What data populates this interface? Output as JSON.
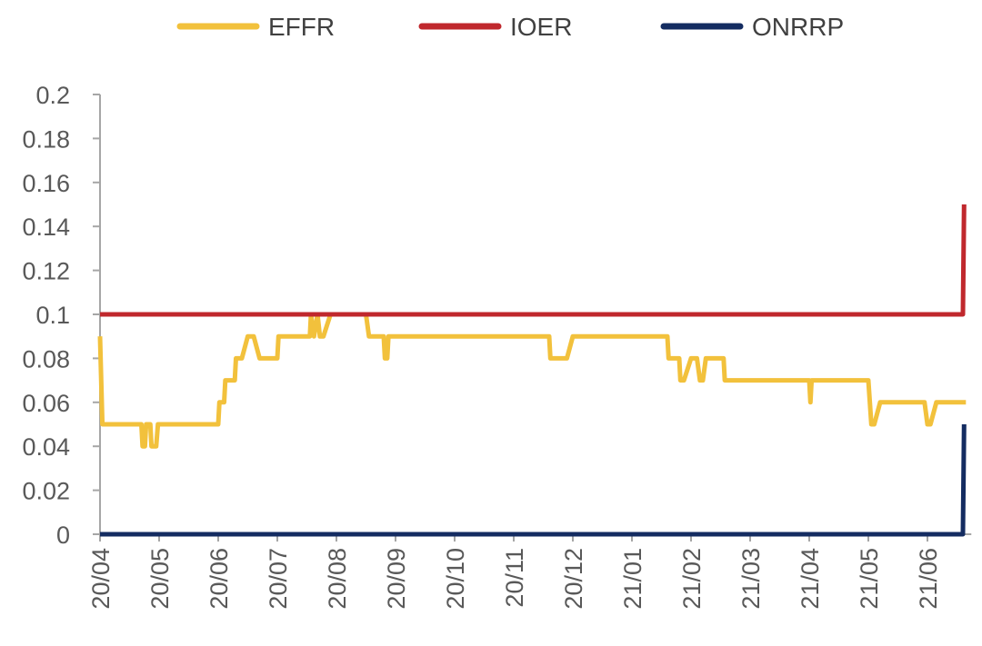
{
  "chart_data": {
    "type": "line",
    "title": "",
    "xlabel": "",
    "ylabel": "",
    "ylim": [
      0,
      0.2
    ],
    "yticks": [
      "0",
      "0.02",
      "0.04",
      "0.06",
      "0.08",
      "0.1",
      "0.12",
      "0.14",
      "0.16",
      "0.18",
      "0.2"
    ],
    "xticks": [
      "20/04",
      "20/05",
      "20/06",
      "20/07",
      "20/08",
      "20/09",
      "20/10",
      "20/11",
      "20/12",
      "21/01",
      "21/02",
      "21/03",
      "21/04",
      "21/05",
      "21/06"
    ],
    "x_unit": "month index from 20/04",
    "x_range": [
      0,
      14.65
    ],
    "grid": false,
    "legend_position": "top",
    "series": [
      {
        "name": "EFFR",
        "color": "#F2C13C",
        "points": [
          [
            0,
            0.09
          ],
          [
            0.04,
            0.05
          ],
          [
            0.7,
            0.05
          ],
          [
            0.72,
            0.04
          ],
          [
            0.76,
            0.04
          ],
          [
            0.78,
            0.05
          ],
          [
            0.85,
            0.05
          ],
          [
            0.87,
            0.04
          ],
          [
            0.95,
            0.04
          ],
          [
            0.98,
            0.05
          ],
          [
            2.0,
            0.05
          ],
          [
            2.02,
            0.06
          ],
          [
            2.1,
            0.06
          ],
          [
            2.12,
            0.07
          ],
          [
            2.28,
            0.07
          ],
          [
            2.3,
            0.08
          ],
          [
            2.4,
            0.08
          ],
          [
            2.5,
            0.09
          ],
          [
            2.6,
            0.09
          ],
          [
            2.7,
            0.08
          ],
          [
            3.0,
            0.08
          ],
          [
            3.02,
            0.09
          ],
          [
            3.55,
            0.09
          ],
          [
            3.57,
            0.1
          ],
          [
            3.62,
            0.09
          ],
          [
            3.68,
            0.1
          ],
          [
            3.72,
            0.09
          ],
          [
            3.78,
            0.09
          ],
          [
            3.9,
            0.1
          ],
          [
            4.5,
            0.1
          ],
          [
            4.55,
            0.09
          ],
          [
            4.8,
            0.09
          ],
          [
            4.82,
            0.08
          ],
          [
            4.86,
            0.08
          ],
          [
            4.88,
            0.09
          ],
          [
            7.6,
            0.09
          ],
          [
            7.62,
            0.08
          ],
          [
            7.9,
            0.08
          ],
          [
            8.0,
            0.09
          ],
          [
            9.6,
            0.09
          ],
          [
            9.62,
            0.08
          ],
          [
            9.8,
            0.08
          ],
          [
            9.82,
            0.07
          ],
          [
            9.88,
            0.07
          ],
          [
            10.0,
            0.08
          ],
          [
            10.1,
            0.08
          ],
          [
            10.15,
            0.07
          ],
          [
            10.2,
            0.07
          ],
          [
            10.25,
            0.08
          ],
          [
            10.55,
            0.08
          ],
          [
            10.57,
            0.07
          ],
          [
            12.0,
            0.07
          ],
          [
            12.02,
            0.06
          ],
          [
            12.04,
            0.07
          ],
          [
            13.0,
            0.07
          ],
          [
            13.05,
            0.05
          ],
          [
            13.1,
            0.05
          ],
          [
            13.2,
            0.06
          ],
          [
            13.95,
            0.06
          ],
          [
            14.0,
            0.05
          ],
          [
            14.05,
            0.05
          ],
          [
            14.15,
            0.06
          ],
          [
            14.65,
            0.06
          ]
        ]
      },
      {
        "name": "IOER",
        "color": "#C0282D",
        "points": [
          [
            0,
            0.1
          ],
          [
            14.6,
            0.1
          ],
          [
            14.62,
            0.15
          ]
        ]
      },
      {
        "name": "ONRRP",
        "color": "#142C61",
        "points": [
          [
            0,
            0.0
          ],
          [
            14.6,
            0.0
          ],
          [
            14.62,
            0.05
          ]
        ]
      }
    ]
  }
}
